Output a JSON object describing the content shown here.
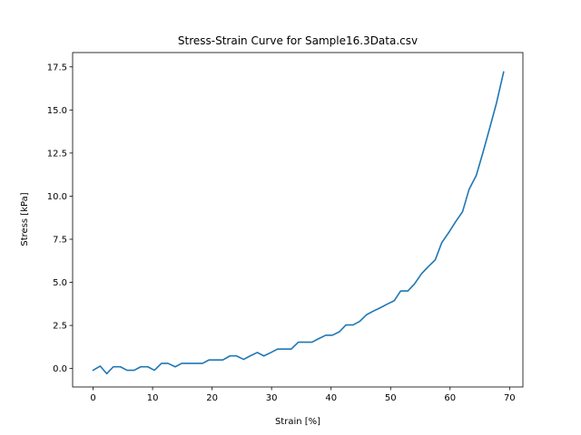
{
  "chart_data": {
    "type": "line",
    "title": "Stress-Strain Curve for Sample16.3Data.csv",
    "xlabel": "Strain [%]",
    "ylabel": "Stress [kPa]",
    "xlim": [
      -3.44,
      72.24
    ],
    "ylim": [
      -1.07,
      18.33
    ],
    "x_ticks": [
      0,
      10,
      20,
      30,
      40,
      50,
      60,
      70
    ],
    "x_tick_labels": [
      "0",
      "10",
      "20",
      "30",
      "40",
      "50",
      "60",
      "70"
    ],
    "y_ticks": [
      0.0,
      2.5,
      5.0,
      7.5,
      10.0,
      12.5,
      15.0,
      17.5
    ],
    "y_tick_labels": [
      "0.0",
      "2.5",
      "5.0",
      "7.5",
      "10.0",
      "12.5",
      "15.0",
      "17.5"
    ],
    "grid": false,
    "legend": "none",
    "series": [
      {
        "color": "#1f77b4",
        "x": [
          0.0,
          1.2,
          2.3,
          3.4,
          4.6,
          5.7,
          6.9,
          8.0,
          9.2,
          10.3,
          11.5,
          12.6,
          13.8,
          14.9,
          16.1,
          17.2,
          18.4,
          19.5,
          20.7,
          21.8,
          23.0,
          24.1,
          25.3,
          26.4,
          27.6,
          28.7,
          29.9,
          31.0,
          32.2,
          33.3,
          34.5,
          35.6,
          36.8,
          37.9,
          39.1,
          40.2,
          41.4,
          42.5,
          43.7,
          44.8,
          46.0,
          47.1,
          48.3,
          49.4,
          50.6,
          51.7,
          52.9,
          54.0,
          55.2,
          56.3,
          57.5,
          58.6,
          59.8,
          60.9,
          62.1,
          63.2,
          64.4,
          65.5,
          66.7,
          67.8,
          69.0
        ],
        "y": [
          -0.1,
          0.14,
          -0.3,
          0.1,
          0.1,
          -0.1,
          -0.1,
          0.1,
          0.1,
          -0.1,
          0.3,
          0.3,
          0.1,
          0.3,
          0.3,
          0.3,
          0.3,
          0.5,
          0.5,
          0.5,
          0.73,
          0.73,
          0.53,
          0.73,
          0.93,
          0.73,
          0.93,
          1.13,
          1.13,
          1.13,
          1.53,
          1.53,
          1.53,
          1.73,
          1.93,
          1.93,
          2.13,
          2.53,
          2.53,
          2.73,
          3.13,
          3.33,
          3.53,
          3.73,
          3.93,
          4.5,
          4.5,
          4.9,
          5.5,
          5.9,
          6.3,
          7.3,
          7.9,
          8.5,
          9.1,
          10.4,
          11.2,
          12.5,
          14.0,
          15.4,
          17.2
        ]
      }
    ]
  }
}
